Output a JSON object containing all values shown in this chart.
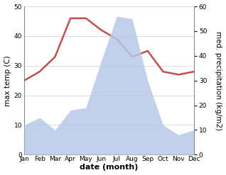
{
  "months": [
    "Jan",
    "Feb",
    "Mar",
    "Apr",
    "May",
    "Jun",
    "Jul",
    "Aug",
    "Sep",
    "Oct",
    "Nov",
    "Dec"
  ],
  "temperature": [
    25,
    28,
    33,
    46,
    46,
    42,
    39,
    33,
    35,
    28,
    27,
    28
  ],
  "precipitation": [
    12,
    15,
    10,
    18,
    19,
    38,
    56,
    55,
    30,
    12,
    8,
    10
  ],
  "temp_color": "#c0504d",
  "precip_fill_color": "#b8c8e8",
  "temp_ylim": [
    0,
    50
  ],
  "precip_ylim": [
    0,
    60
  ],
  "temp_yticks": [
    0,
    10,
    20,
    30,
    40,
    50
  ],
  "precip_yticks": [
    0,
    10,
    20,
    30,
    40,
    50,
    60
  ],
  "ylabel_left": "max temp (C)",
  "ylabel_right": "med. precipitation (kg/m2)",
  "xlabel": "date (month)",
  "bg_color": "#ffffff",
  "line_width": 1.8,
  "tick_fontsize": 6.5,
  "label_fontsize": 7.5,
  "xlabel_fontsize": 8
}
